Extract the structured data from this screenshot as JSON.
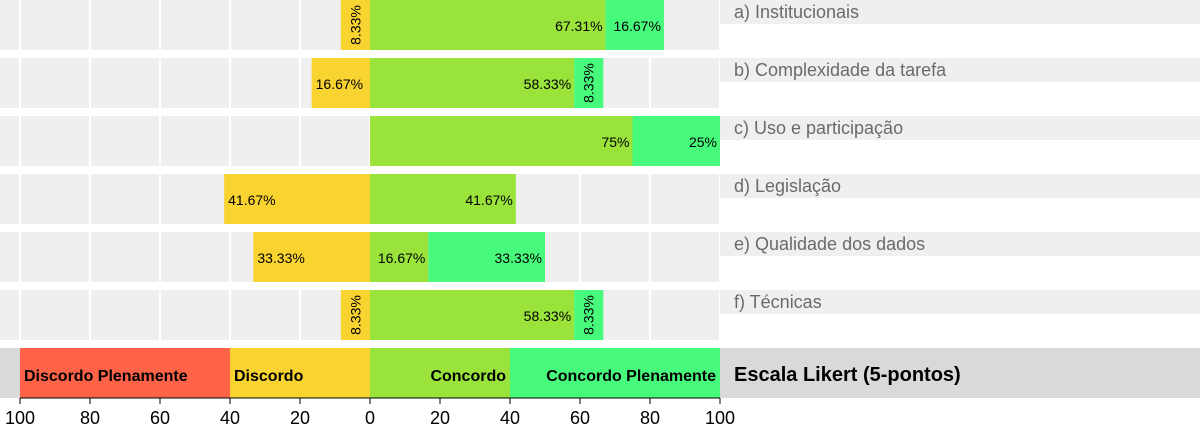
{
  "chart_data": {
    "type": "bar",
    "subtype": "diverging stacked bar (Likert)",
    "categories": [
      "a) Institucionais",
      "b) Complexidade da tarefa",
      "c) Uso e participação",
      "d) Legislação",
      "e) Qualidade dos dados",
      "f) Técnicas"
    ],
    "series": [
      {
        "name": "Discordo Plenamente",
        "side": "negative",
        "color": "#ff6347",
        "values": [
          0,
          0,
          0,
          0,
          0,
          0
        ]
      },
      {
        "name": "Discordo",
        "side": "negative",
        "color": "#f9d330",
        "values": [
          8.33,
          16.67,
          0,
          41.67,
          33.33,
          8.33
        ]
      },
      {
        "name": "Concordo",
        "side": "positive",
        "color": "#9ae33b",
        "values": [
          67.31,
          58.33,
          75,
          41.67,
          16.67,
          58.33
        ]
      },
      {
        "name": "Concordo Plenamente",
        "side": "positive",
        "color": "#48fa7c",
        "values": [
          16.67,
          8.33,
          25,
          0,
          33.33,
          8.33
        ]
      }
    ],
    "value_labels": [
      [
        "",
        "8.33%",
        "67.31%",
        "16.67%"
      ],
      [
        "",
        "16.67%",
        "58.33%",
        "8.33%"
      ],
      [
        "",
        "",
        "75%",
        "25%"
      ],
      [
        "",
        "41.67%",
        "41.67%",
        ""
      ],
      [
        "",
        "33.33%",
        "16.67%",
        "33.33%"
      ],
      [
        "",
        "8.33%",
        "58.33%",
        "8.33%"
      ]
    ],
    "xlim": [
      -100,
      100
    ],
    "xticks": [
      -100,
      -80,
      -60,
      -40,
      -20,
      0,
      20,
      40,
      60,
      80,
      100
    ],
    "xtick_labels": [
      "100",
      "80",
      "60",
      "40",
      "20",
      "0",
      "20",
      "40",
      "60",
      "80",
      "100"
    ],
    "legend": {
      "title": "Escala Likert (5-pontos)",
      "position": "bottom",
      "items": [
        {
          "label": "Discordo Plenamente",
          "color": "#ff6347",
          "from": -100,
          "to": -40,
          "align": "start"
        },
        {
          "label": "Discordo",
          "color": "#f9d330",
          "from": -40,
          "to": 0,
          "align": "start"
        },
        {
          "label": "Concordo",
          "color": "#9ae33b",
          "from": 0,
          "to": 40,
          "align": "end"
        },
        {
          "label": "Concordo Plenamente",
          "color": "#48fa7c",
          "from": 40,
          "to": 100,
          "align": "end"
        }
      ]
    },
    "grid": true,
    "panel_background": "#efefef",
    "legend_background": "#d9d9d9",
    "category_label_color": "#6a6a6a"
  }
}
